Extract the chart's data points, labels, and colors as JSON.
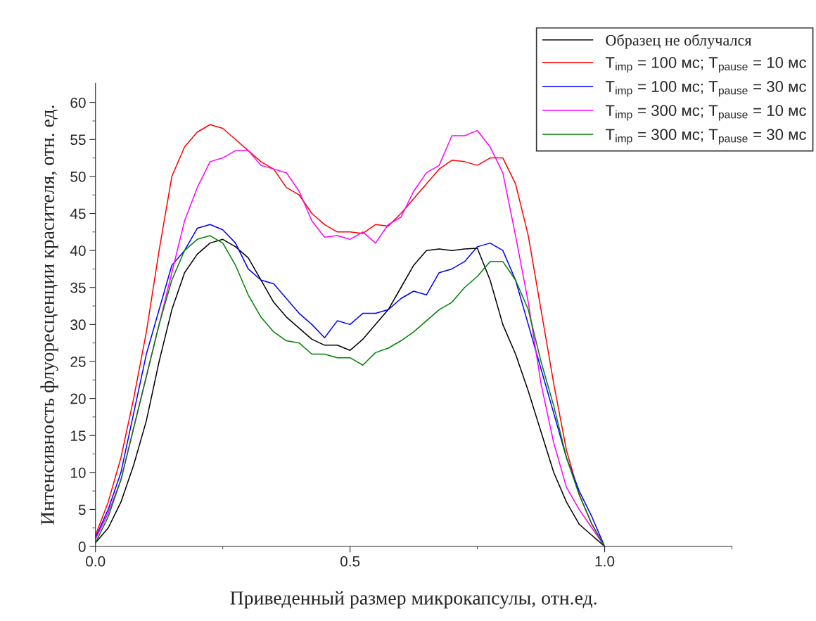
{
  "chart_data": {
    "type": "line",
    "xlabel": "Приведенный размер микрокапсулы, отн.ед.",
    "ylabel": "Интенсивность флуоресценции красителя, отн. ед.",
    "x": [
      0,
      0.025,
      0.05,
      0.075,
      0.1,
      0.125,
      0.15,
      0.175,
      0.2,
      0.225,
      0.25,
      0.275,
      0.3,
      0.325,
      0.35,
      0.375,
      0.4,
      0.425,
      0.45,
      0.475,
      0.5,
      0.525,
      0.55,
      0.575,
      0.6,
      0.625,
      0.65,
      0.675,
      0.7,
      0.725,
      0.75,
      0.775,
      0.8,
      0.825,
      0.85,
      0.875,
      0.9,
      0.925,
      0.95,
      0.975,
      1.0
    ],
    "series": [
      {
        "name": "Образец не облучался",
        "color": "#000000",
        "values": [
          0.5,
          2.5,
          6,
          11,
          17,
          25,
          32,
          37,
          39.5,
          41,
          41.5,
          40.5,
          39,
          36,
          33,
          31,
          29.5,
          28,
          27.2,
          27.2,
          26.5,
          28,
          30,
          32,
          35,
          38,
          40,
          40.2,
          40,
          40.2,
          40.3,
          36,
          30,
          26,
          21,
          15.5,
          10,
          6,
          3,
          1.5,
          0
        ]
      },
      {
        "name": "T$_{imp}$ = 100 мс; T$_{pause}$ = 10 мс",
        "color": "#ff0000",
        "values": [
          1.5,
          6,
          12,
          20,
          29,
          40,
          50,
          54,
          56,
          57,
          56.5,
          55,
          53.5,
          52,
          51,
          48.5,
          47.5,
          45,
          43.5,
          42.5,
          42.5,
          42.3,
          43.5,
          43.3,
          45,
          47,
          49,
          51,
          52.2,
          52,
          51.5,
          52.5,
          52.5,
          49,
          42,
          32,
          22,
          13,
          7,
          3,
          0
        ]
      },
      {
        "name": "T$_{imp}$ = 100 мс; T$_{pause}$ = 30 мс",
        "color": "#0000ff",
        "values": [
          1.2,
          5,
          10,
          18,
          26,
          32,
          38,
          40,
          43,
          43.5,
          42.8,
          41,
          37.5,
          36,
          35.5,
          33.5,
          31.5,
          30,
          28.2,
          30.5,
          30,
          31.5,
          31.5,
          32,
          33.5,
          34.5,
          34,
          37,
          37.5,
          38.5,
          40.5,
          41,
          40,
          36,
          30,
          24,
          18,
          12,
          7.5,
          4,
          0
        ]
      },
      {
        "name": "T$_{imp}$ = 300 мс; T$_{pause}$ = 10 мс",
        "color": "#ff00ff",
        "values": [
          1,
          4.5,
          9,
          16,
          23,
          30,
          37,
          44,
          48.5,
          52,
          52.5,
          53.5,
          53.5,
          51.5,
          51,
          50.5,
          48,
          44,
          41.8,
          42,
          41.5,
          42.5,
          41,
          43.5,
          44.5,
          48,
          50.5,
          51.5,
          55.5,
          55.5,
          56.2,
          54,
          50.5,
          42,
          33,
          22,
          14,
          8,
          5,
          2.5,
          0
        ]
      },
      {
        "name": "T$_{imp}$ = 300 мс; T$_{pause}$ = 30 мс",
        "color": "#008000",
        "values": [
          0.5,
          4,
          9,
          16,
          23,
          30,
          36,
          40,
          41.5,
          42,
          41,
          38,
          34,
          31,
          29,
          27.8,
          27.5,
          26,
          26,
          25.5,
          25.5,
          24.5,
          26.2,
          26.8,
          27.8,
          29,
          30.5,
          32,
          33,
          35,
          36.5,
          38.5,
          38.5,
          36,
          32,
          25,
          19,
          12,
          7,
          3,
          0
        ]
      }
    ],
    "xlim": [
      0,
      1.25
    ],
    "xticks": [
      {
        "value": 0,
        "label": "0.0"
      },
      {
        "value": 0.5,
        "label": "0.5"
      },
      {
        "value": 1.0,
        "label": "1.0"
      }
    ],
    "ylim": [
      0,
      62.6
    ],
    "yticks": [
      0,
      5,
      10,
      15,
      20,
      25,
      30,
      35,
      40,
      45,
      50,
      55,
      60
    ],
    "grid": false,
    "legend": "top right",
    "line_style": "solid",
    "marker": "none"
  }
}
